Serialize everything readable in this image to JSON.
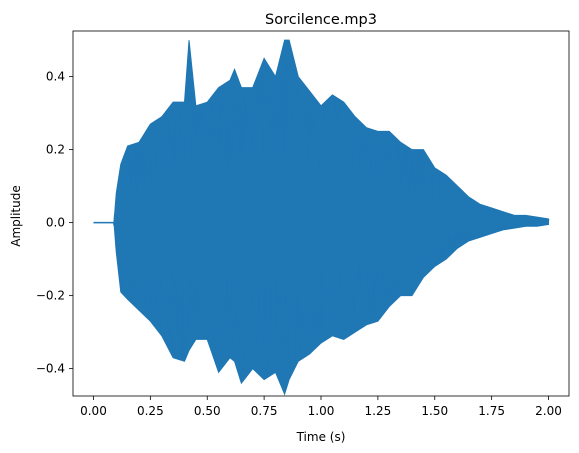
{
  "chart_data": {
    "type": "line",
    "title": "Sorcilence.mp3",
    "xlabel": "Time (s)",
    "ylabel": "Amplitude",
    "xlim": [
      -0.09,
      2.09
    ],
    "ylim": [
      -0.475,
      0.525
    ],
    "x_ticks": [
      0.0,
      0.25,
      0.5,
      0.75,
      1.0,
      1.25,
      1.5,
      1.75,
      2.0
    ],
    "x_tick_labels": [
      "0.00",
      "0.25",
      "0.50",
      "0.75",
      "1.00",
      "1.25",
      "1.50",
      "1.75",
      "2.00"
    ],
    "y_ticks": [
      -0.4,
      -0.2,
      0.0,
      0.2,
      0.4
    ],
    "y_tick_labels": [
      "−0.4",
      "−0.2",
      "0.0",
      "0.2",
      "0.4"
    ],
    "grid": false,
    "legend": "none",
    "series": [
      {
        "color": "#1f77b4",
        "x": [
          0.0,
          0.09,
          0.1,
          0.12,
          0.15,
          0.2,
          0.25,
          0.3,
          0.35,
          0.4,
          0.42,
          0.45,
          0.5,
          0.55,
          0.6,
          0.62,
          0.65,
          0.7,
          0.75,
          0.8,
          0.84,
          0.86,
          0.9,
          0.95,
          1.0,
          1.05,
          1.1,
          1.15,
          1.2,
          1.25,
          1.3,
          1.35,
          1.4,
          1.45,
          1.5,
          1.55,
          1.6,
          1.65,
          1.7,
          1.75,
          1.8,
          1.85,
          1.9,
          1.95,
          2.0
        ],
        "y_max": [
          0.0,
          0.0,
          0.08,
          0.16,
          0.21,
          0.22,
          0.27,
          0.29,
          0.33,
          0.33,
          0.5,
          0.32,
          0.33,
          0.37,
          0.39,
          0.42,
          0.37,
          0.37,
          0.45,
          0.4,
          0.5,
          0.5,
          0.4,
          0.36,
          0.32,
          0.35,
          0.33,
          0.29,
          0.26,
          0.25,
          0.25,
          0.22,
          0.2,
          0.2,
          0.15,
          0.13,
          0.1,
          0.07,
          0.05,
          0.04,
          0.03,
          0.02,
          0.02,
          0.015,
          0.01
        ],
        "y_min": [
          0.0,
          0.0,
          -0.08,
          -0.19,
          -0.21,
          -0.24,
          -0.27,
          -0.31,
          -0.37,
          -0.38,
          -0.35,
          -0.32,
          -0.32,
          -0.41,
          -0.37,
          -0.38,
          -0.44,
          -0.4,
          -0.43,
          -0.41,
          -0.47,
          -0.43,
          -0.38,
          -0.36,
          -0.33,
          -0.31,
          -0.32,
          -0.3,
          -0.28,
          -0.27,
          -0.23,
          -0.2,
          -0.2,
          -0.15,
          -0.12,
          -0.1,
          -0.07,
          -0.05,
          -0.04,
          -0.03,
          -0.02,
          -0.015,
          -0.01,
          -0.01,
          -0.005
        ]
      }
    ]
  }
}
